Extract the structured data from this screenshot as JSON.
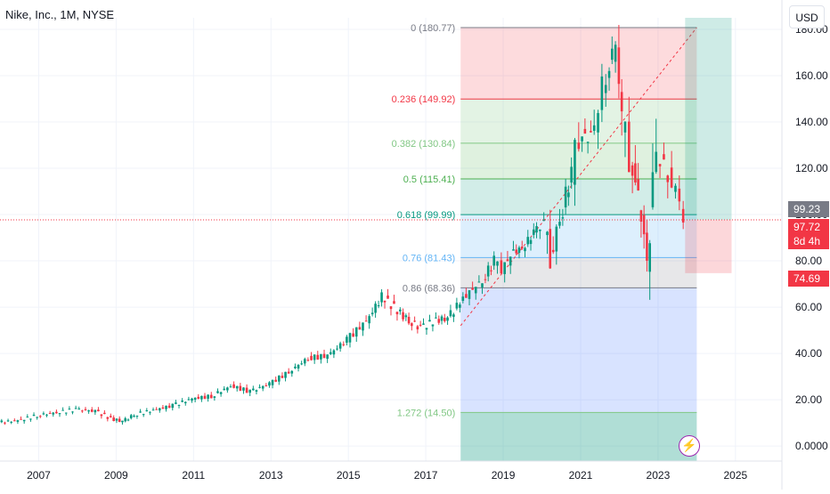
{
  "header": {
    "symbol_title": "Nike, Inc., 1M, NYSE",
    "currency": "USD"
  },
  "price_tags": {
    "prev": "99.23",
    "last": "97.72",
    "countdown": "8d 4h",
    "stop": "74.69"
  },
  "chart_data": {
    "type": "candlestick",
    "xlabel": "",
    "ylabel": "",
    "x_tick_labels": [
      "2007",
      "2009",
      "2011",
      "2013",
      "2015",
      "2017",
      "2019",
      "2021",
      "2023",
      "2025"
    ],
    "y_tick_labels": [
      "180.00",
      "160.00",
      "140.00",
      "120.00",
      "100.00",
      "80.00",
      "60.00",
      "40.00",
      "20.00",
      "0.0000"
    ],
    "y_ticks": [
      180,
      160,
      140,
      120,
      100,
      80,
      60,
      40,
      20,
      0
    ],
    "xlim": [
      2006.0,
      2026.2
    ],
    "ylim": [
      -6.5,
      185
    ],
    "series": [
      {
        "values": [
          [
            2006.0,
            10.2
          ],
          [
            2006.5,
            11.0
          ],
          [
            2007.0,
            13.2
          ],
          [
            2007.5,
            14.5
          ],
          [
            2008.0,
            15.8
          ],
          [
            2008.5,
            15.0
          ],
          [
            2008.9,
            11.8
          ],
          [
            2009.2,
            10.6
          ],
          [
            2009.5,
            13.5
          ],
          [
            2010.0,
            15.5
          ],
          [
            2010.5,
            17.5
          ],
          [
            2011.0,
            20.5
          ],
          [
            2011.5,
            21.5
          ],
          [
            2012.0,
            26.0
          ],
          [
            2012.5,
            23.5
          ],
          [
            2013.0,
            27.0
          ],
          [
            2013.5,
            32.0
          ],
          [
            2014.0,
            38.0
          ],
          [
            2014.5,
            39.0
          ],
          [
            2015.0,
            46.0
          ],
          [
            2015.5,
            54.0
          ],
          [
            2015.9,
            64.5
          ],
          [
            2016.3,
            58.5
          ],
          [
            2016.6,
            54.0
          ],
          [
            2016.9,
            51.0
          ],
          [
            2017.3,
            54.5
          ],
          [
            2017.6,
            55.0
          ],
          [
            2018.0,
            64.0
          ],
          [
            2018.5,
            71.5
          ],
          [
            2018.8,
            80.0
          ],
          [
            2019.0,
            76.5
          ],
          [
            2019.3,
            84.0
          ],
          [
            2019.6,
            86.0
          ],
          [
            2019.9,
            95.0
          ],
          [
            2020.1,
            96.0
          ],
          [
            2020.25,
            81.5
          ],
          [
            2020.5,
            98.0
          ],
          [
            2020.8,
            118.0
          ],
          [
            2021.0,
            134.5
          ],
          [
            2021.3,
            133.0
          ],
          [
            2021.5,
            145.0
          ],
          [
            2021.7,
            161.5
          ],
          [
            2021.85,
            168.0
          ],
          [
            2021.95,
            170.0
          ],
          [
            2022.1,
            142.0
          ],
          [
            2022.3,
            125.0
          ],
          [
            2022.45,
            111.0
          ],
          [
            2022.6,
            101.0
          ],
          [
            2022.75,
            82.0
          ],
          [
            2022.9,
            110.0
          ],
          [
            2023.0,
            125.0
          ],
          [
            2023.2,
            121.0
          ],
          [
            2023.4,
            111.0
          ],
          [
            2023.5,
            110.0
          ],
          [
            2023.6,
            102.0
          ],
          [
            2023.7,
            97.72
          ]
        ]
      }
    ],
    "last_price": 97.72,
    "fibonacci": {
      "levels": [
        {
          "ratio": "0",
          "price": 180.77,
          "label": "0 (180.77)",
          "color": "#787b86"
        },
        {
          "ratio": "0.236",
          "price": 149.92,
          "label": "0.236 (149.92)",
          "color": "#f23645"
        },
        {
          "ratio": "0.382",
          "price": 130.84,
          "label": "0.382 (130.84)",
          "color": "#81c784"
        },
        {
          "ratio": "0.5",
          "price": 115.41,
          "label": "0.5 (115.41)",
          "color": "#4caf50"
        },
        {
          "ratio": "0.618",
          "price": 99.99,
          "label": "0.618 (99.99)",
          "color": "#089981"
        },
        {
          "ratio": "0.76",
          "price": 81.43,
          "label": "0.76 (81.43)",
          "color": "#64b5f6"
        },
        {
          "ratio": "0.86",
          "price": 68.36,
          "label": "0.86 (68.36)",
          "color": "#787b86"
        },
        {
          "ratio": "1.272",
          "price": 14.5,
          "label": "1.272 (14.50)",
          "color": "#81c784"
        }
      ],
      "x_range": [
        2017.9,
        2024.0
      ],
      "trend_from": [
        2017.9,
        52.0
      ],
      "trend_to": [
        2024.0,
        180.77
      ]
    },
    "position_tool": {
      "entry": 97.72,
      "target_top": 185,
      "stop": 74.69,
      "x_range": [
        2023.7,
        2024.9
      ],
      "profit_color": "#089981",
      "loss_color": "#f23645"
    },
    "grid": true,
    "legend": "none"
  }
}
